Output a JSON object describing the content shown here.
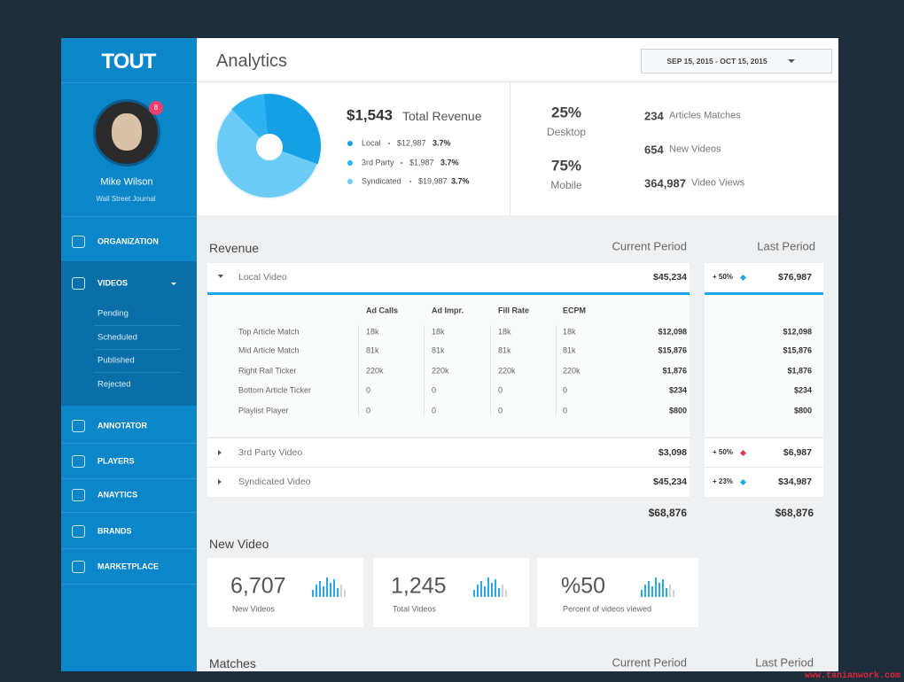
{
  "brand": "TOUT",
  "user": {
    "name": "Mike Wilson",
    "organization": "Wall Street Journal",
    "notifications": "8"
  },
  "nav": [
    {
      "label": "ORGANIZATION"
    },
    {
      "label": "VIDEOS",
      "children": [
        "Pending",
        "Scheduled",
        "Published",
        "Rejected"
      ]
    },
    {
      "label": "ANNOTATOR"
    },
    {
      "label": "PLAYERS"
    },
    {
      "label": "ANAYTICS"
    },
    {
      "label": "BRANDS"
    },
    {
      "label": "MARKETPLACE"
    }
  ],
  "header": {
    "title": "Analytics",
    "date_range": "SEP 15, 2015 - OCT 15, 2015"
  },
  "summary": {
    "revenue": "$1,543",
    "revenue_label": "Total Revenue",
    "breakdown": [
      {
        "name": "Local",
        "amount": "$12,987",
        "rate": "3.7%"
      },
      {
        "name": "3rd Party",
        "amount": "$1,987",
        "rate": "3.7%"
      },
      {
        "name": "Syndicated",
        "amount": "$19,987",
        "rate": "3.7%"
      }
    ],
    "devices": [
      {
        "share": "25%",
        "label": "Desktop"
      },
      {
        "share": "75%",
        "label": "Mobile"
      }
    ],
    "stats": [
      {
        "value": "234",
        "label": "Articles Matches"
      },
      {
        "value": "654",
        "label": "New Videos"
      },
      {
        "value": "364,987",
        "label": "Video Views"
      }
    ]
  },
  "revenue": {
    "title": "Revenue",
    "current_header": "Current Period",
    "last_header": "Last Period",
    "columns": [
      "Ad Calls",
      "Ad Impr.",
      "Fill Rate",
      "ECPM"
    ],
    "groups": [
      {
        "name": "Local Video",
        "current": "$45,234",
        "change": "+ 50%",
        "last": "$76,987",
        "rows": [
          [
            "Top Article Match",
            "18k",
            "18k",
            "18k",
            "18k",
            "$12,098",
            "$12,098"
          ],
          [
            "Mid Article Match",
            "81k",
            "81k",
            "81k",
            "81k",
            "$15,876",
            "$15,876"
          ],
          [
            "Right Rail Ticker",
            "220k",
            "220k",
            "220k",
            "220k",
            "$1,876",
            "$1,876"
          ],
          [
            "Bottom Article Ticker",
            "0",
            "0",
            "0",
            "0",
            "$234",
            "$234"
          ],
          [
            "Playlist Player",
            "0",
            "0",
            "0",
            "0",
            "$800",
            "$800"
          ]
        ]
      },
      {
        "name": "3rd Party Video",
        "current": "$3,098",
        "change": "+ 50%",
        "last": "$6,987"
      },
      {
        "name": "Syndicated Video",
        "current": "$45,234",
        "change": "+ 23%",
        "last": "$34,987"
      }
    ],
    "total_current": "$68,876",
    "total_last": "$68,876"
  },
  "new_video": {
    "title": "New Video",
    "cards": [
      {
        "value": "6,707",
        "label": "New Videos"
      },
      {
        "value": "1,245",
        "label": "Total Videos"
      },
      {
        "value": "%50",
        "label": "Percent of videos viewed"
      }
    ]
  },
  "matches": {
    "title": "Matches",
    "current_header": "Current Period",
    "last_header": "Last Period"
  },
  "watermark": "www.tanianwork.com"
}
